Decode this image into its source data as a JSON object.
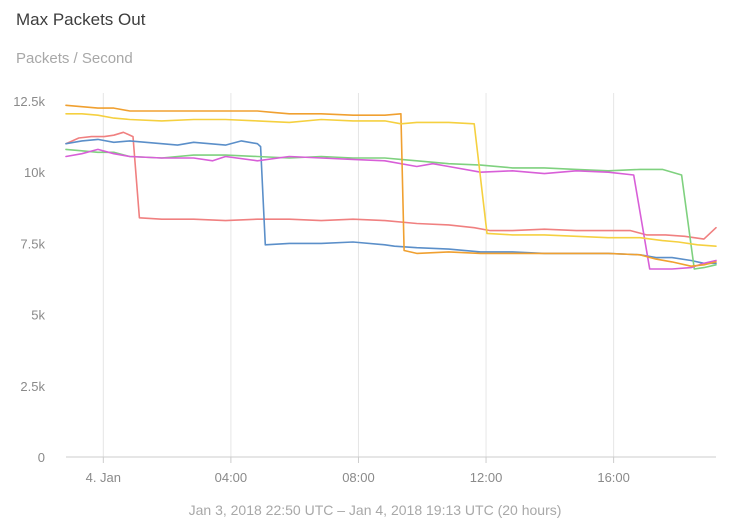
{
  "header": {
    "title": "Max Packets Out",
    "subtitle": "Packets / Second"
  },
  "footer": {
    "range_text": "Jan 3, 2018 22:50 UTC – Jan 4, 2018 19:13 UTC (20 hours)"
  },
  "chart_data": {
    "type": "line",
    "title": "Max Packets Out",
    "subtitle": "Packets / Second",
    "xlabel": "",
    "ylabel": "",
    "x_unit": "hours since Jan 3, 2018 22:50 UTC",
    "xlim": [
      0,
      20.38
    ],
    "ylim": [
      0,
      12500
    ],
    "y_ticks": [
      {
        "value": 0,
        "label": "0"
      },
      {
        "value": 2500,
        "label": "2.5k"
      },
      {
        "value": 5000,
        "label": "5k"
      },
      {
        "value": 7500,
        "label": "7.5k"
      },
      {
        "value": 10000,
        "label": "10k"
      },
      {
        "value": 12500,
        "label": "12.5k"
      }
    ],
    "x_ticks": [
      {
        "value": 1.17,
        "label": "4. Jan"
      },
      {
        "value": 5.17,
        "label": "04:00"
      },
      {
        "value": 9.17,
        "label": "08:00"
      },
      {
        "value": 13.17,
        "label": "12:00"
      },
      {
        "value": 17.17,
        "label": "16:00"
      }
    ],
    "grid": {
      "x": true,
      "y": false
    },
    "legend": "none",
    "series": [
      {
        "color": "#f08080",
        "points": [
          [
            0,
            11000
          ],
          [
            0.4,
            11200
          ],
          [
            0.8,
            11250
          ],
          [
            1.2,
            11250
          ],
          [
            1.5,
            11300
          ],
          [
            1.8,
            11400
          ],
          [
            2.1,
            11250
          ],
          [
            2.3,
            8400
          ],
          [
            3.0,
            8350
          ],
          [
            4.0,
            8350
          ],
          [
            5.0,
            8300
          ],
          [
            6.0,
            8350
          ],
          [
            7.0,
            8350
          ],
          [
            8.0,
            8300
          ],
          [
            9.0,
            8350
          ],
          [
            10.0,
            8300
          ],
          [
            11.0,
            8200
          ],
          [
            12.0,
            8150
          ],
          [
            12.8,
            8050
          ],
          [
            13.3,
            7950
          ],
          [
            14.0,
            7950
          ],
          [
            15.0,
            8000
          ],
          [
            16.0,
            7950
          ],
          [
            17.0,
            7950
          ],
          [
            17.7,
            7950
          ],
          [
            18.2,
            7800
          ],
          [
            18.8,
            7800
          ],
          [
            19.4,
            7750
          ],
          [
            20.0,
            7650
          ],
          [
            20.38,
            8050
          ]
        ]
      },
      {
        "color": "#5b8fc9",
        "points": [
          [
            0,
            11000
          ],
          [
            0.5,
            11100
          ],
          [
            1.0,
            11150
          ],
          [
            1.5,
            11050
          ],
          [
            2.0,
            11100
          ],
          [
            3.0,
            11000
          ],
          [
            3.5,
            10950
          ],
          [
            4.0,
            11050
          ],
          [
            5.0,
            10950
          ],
          [
            5.5,
            11100
          ],
          [
            6.0,
            11000
          ],
          [
            6.1,
            10900
          ],
          [
            6.25,
            7450
          ],
          [
            7.0,
            7500
          ],
          [
            8.0,
            7500
          ],
          [
            9.0,
            7550
          ],
          [
            10.0,
            7450
          ],
          [
            10.3,
            7400
          ],
          [
            11.0,
            7350
          ],
          [
            12.0,
            7300
          ],
          [
            13.0,
            7200
          ],
          [
            14.0,
            7200
          ],
          [
            15.0,
            7150
          ],
          [
            16.0,
            7150
          ],
          [
            17.0,
            7150
          ],
          [
            18.0,
            7100
          ],
          [
            18.5,
            7000
          ],
          [
            19.0,
            7000
          ],
          [
            19.6,
            6900
          ],
          [
            20.0,
            6800
          ],
          [
            20.38,
            6800
          ]
        ]
      },
      {
        "color": "#7fd17f",
        "points": [
          [
            0,
            10800
          ],
          [
            0.5,
            10750
          ],
          [
            1.0,
            10700
          ],
          [
            1.5,
            10700
          ],
          [
            2.0,
            10550
          ],
          [
            3.0,
            10500
          ],
          [
            4.0,
            10600
          ],
          [
            5.0,
            10600
          ],
          [
            6.0,
            10550
          ],
          [
            7.0,
            10500
          ],
          [
            8.0,
            10550
          ],
          [
            9.0,
            10500
          ],
          [
            10.0,
            10500
          ],
          [
            10.5,
            10450
          ],
          [
            11.0,
            10400
          ],
          [
            12.0,
            10300
          ],
          [
            13.0,
            10250
          ],
          [
            14.0,
            10150
          ],
          [
            15.0,
            10150
          ],
          [
            16.0,
            10100
          ],
          [
            17.0,
            10050
          ],
          [
            18.0,
            10100
          ],
          [
            18.7,
            10100
          ],
          [
            19.3,
            9900
          ],
          [
            19.7,
            6600
          ],
          [
            20.0,
            6650
          ],
          [
            20.38,
            6750
          ]
        ]
      },
      {
        "color": "#d85fd8",
        "points": [
          [
            0,
            10550
          ],
          [
            0.5,
            10650
          ],
          [
            1.0,
            10800
          ],
          [
            1.5,
            10650
          ],
          [
            2.0,
            10550
          ],
          [
            3.0,
            10500
          ],
          [
            4.0,
            10500
          ],
          [
            4.6,
            10400
          ],
          [
            5.0,
            10550
          ],
          [
            6.0,
            10400
          ],
          [
            7.0,
            10550
          ],
          [
            8.0,
            10500
          ],
          [
            9.0,
            10450
          ],
          [
            10.0,
            10400
          ],
          [
            11.0,
            10200
          ],
          [
            11.5,
            10300
          ],
          [
            12.0,
            10200
          ],
          [
            13.0,
            10000
          ],
          [
            14.0,
            10050
          ],
          [
            15.0,
            9950
          ],
          [
            16.0,
            10050
          ],
          [
            17.0,
            10000
          ],
          [
            17.8,
            9900
          ],
          [
            18.3,
            6600
          ],
          [
            19.0,
            6600
          ],
          [
            19.6,
            6650
          ],
          [
            20.0,
            6800
          ],
          [
            20.38,
            6900
          ]
        ]
      },
      {
        "color": "#f0a030",
        "points": [
          [
            0,
            12350
          ],
          [
            0.5,
            12300
          ],
          [
            1.0,
            12250
          ],
          [
            1.5,
            12250
          ],
          [
            2.0,
            12150
          ],
          [
            3.0,
            12150
          ],
          [
            4.0,
            12150
          ],
          [
            5.0,
            12150
          ],
          [
            6.0,
            12150
          ],
          [
            6.5,
            12100
          ],
          [
            7.0,
            12050
          ],
          [
            8.0,
            12050
          ],
          [
            9.0,
            12000
          ],
          [
            10.0,
            12000
          ],
          [
            10.5,
            12050
          ],
          [
            10.6,
            7250
          ],
          [
            11.0,
            7150
          ],
          [
            12.0,
            7200
          ],
          [
            13.0,
            7150
          ],
          [
            14.0,
            7150
          ],
          [
            15.0,
            7150
          ],
          [
            16.0,
            7150
          ],
          [
            17.0,
            7150
          ],
          [
            18.0,
            7100
          ],
          [
            18.5,
            6950
          ],
          [
            19.0,
            6850
          ],
          [
            19.6,
            6700
          ],
          [
            20.0,
            6750
          ],
          [
            20.38,
            6850
          ]
        ]
      },
      {
        "color": "#f5d040",
        "points": [
          [
            0,
            12050
          ],
          [
            0.5,
            12050
          ],
          [
            1.0,
            12000
          ],
          [
            1.5,
            11900
          ],
          [
            2.0,
            11850
          ],
          [
            3.0,
            11800
          ],
          [
            4.0,
            11850
          ],
          [
            5.0,
            11850
          ],
          [
            6.0,
            11800
          ],
          [
            7.0,
            11750
          ],
          [
            8.0,
            11850
          ],
          [
            9.0,
            11800
          ],
          [
            10.0,
            11800
          ],
          [
            10.5,
            11700
          ],
          [
            11.0,
            11750
          ],
          [
            12.0,
            11750
          ],
          [
            12.8,
            11700
          ],
          [
            13.2,
            7850
          ],
          [
            14.0,
            7800
          ],
          [
            15.0,
            7800
          ],
          [
            16.0,
            7750
          ],
          [
            17.0,
            7700
          ],
          [
            18.0,
            7700
          ],
          [
            18.7,
            7600
          ],
          [
            19.2,
            7550
          ],
          [
            19.8,
            7450
          ],
          [
            20.38,
            7400
          ]
        ]
      }
    ]
  }
}
